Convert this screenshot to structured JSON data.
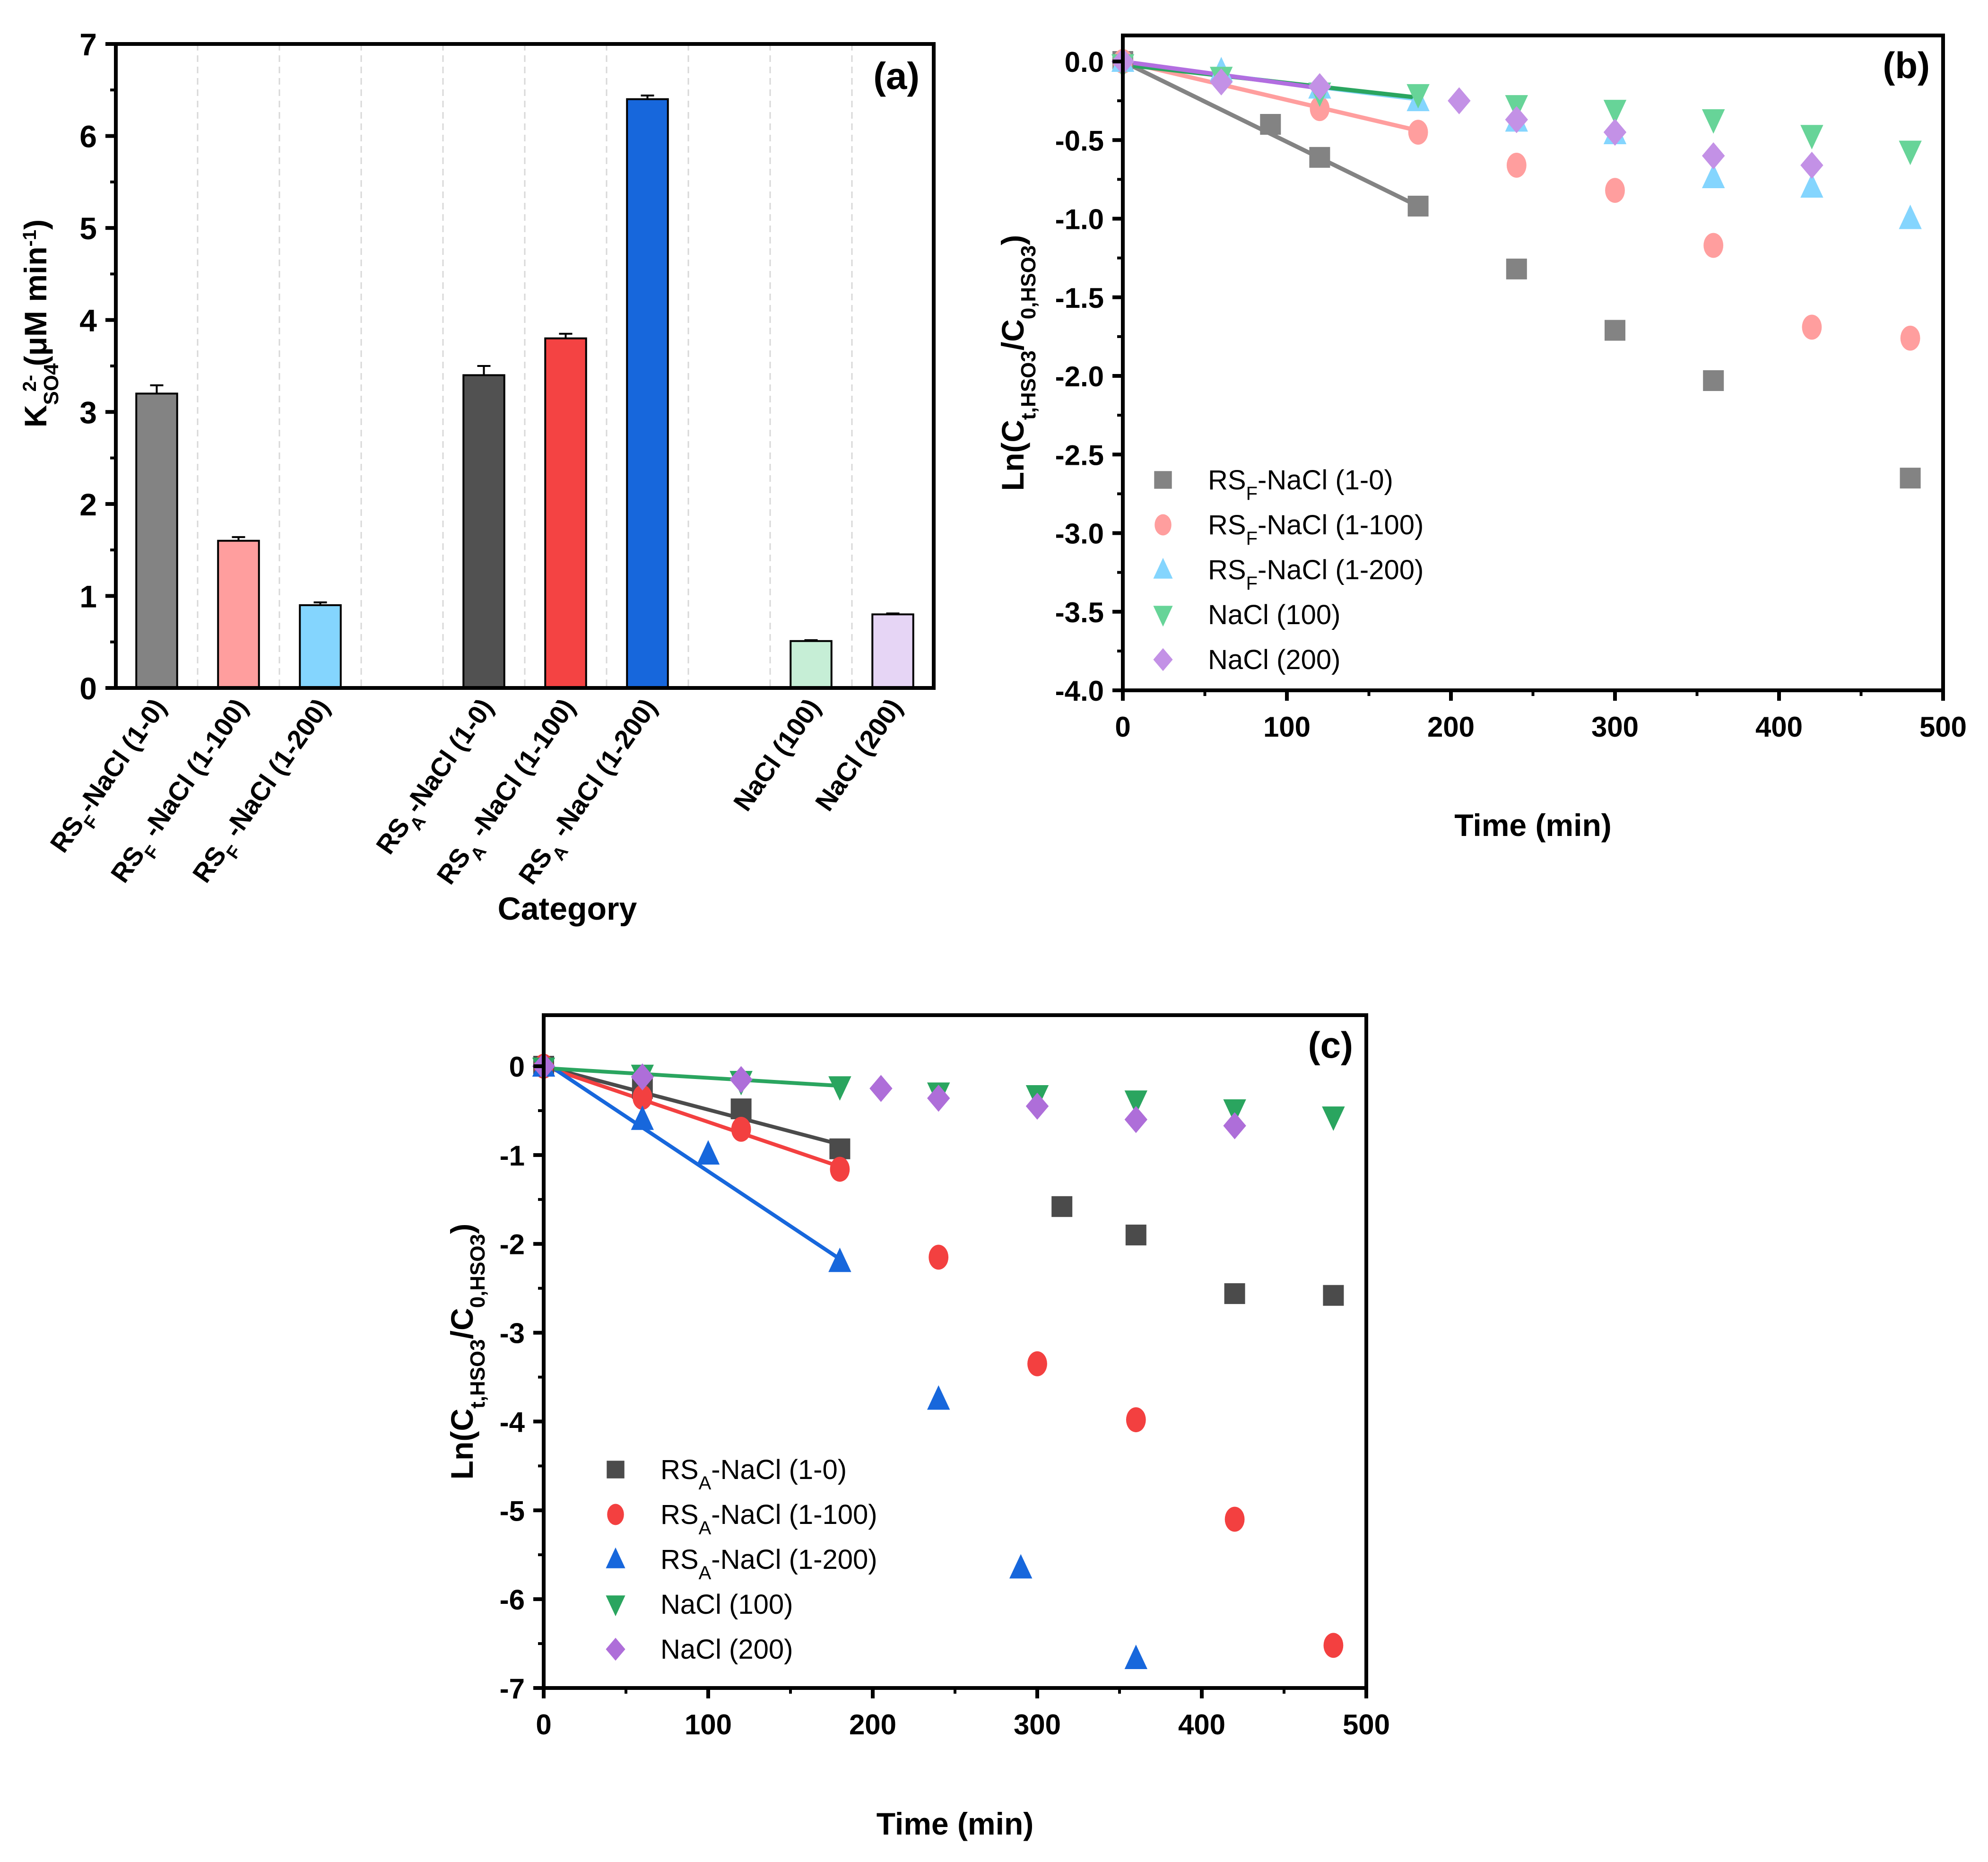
{
  "chart_data": [
    {
      "panel_label": "(a)",
      "type": "bar",
      "title": "",
      "xlabel": "Category",
      "ylabel": "K_SO4^2- (μM min^-1)",
      "ylabel_parts": {
        "main": "K",
        "sub": "SO4",
        "sup": "2-",
        "rest": " (μM min",
        "rest_sup": "-1",
        "close": ")"
      },
      "ylim": [
        0,
        7
      ],
      "yticks": [
        "0",
        "1",
        "2",
        "3",
        "4",
        "5",
        "6",
        "7"
      ],
      "grid": "vertical-dashed",
      "categories": [
        {
          "base": "RS",
          "sub": "F",
          "rest": "-NaCl (1-0)"
        },
        {
          "base": "RS",
          "sub": "F",
          "rest": " -NaCl (1-100)"
        },
        {
          "base": "RS",
          "sub": "F",
          "rest": " -NaCl (1-200)"
        },
        {
          "base": "",
          "sub": "",
          "rest": ""
        },
        {
          "base": "RS",
          "sub": "A",
          "rest": "-NaCl (1-0)"
        },
        {
          "base": "RS",
          "sub": "A",
          "rest": " -NaCl (1-100)"
        },
        {
          "base": "RS",
          "sub": "A",
          "rest": " -NaCl (1-200)"
        },
        {
          "base": "",
          "sub": "",
          "rest": ""
        },
        {
          "base": "",
          "sub": "",
          "rest": "NaCl (100)"
        },
        {
          "base": "",
          "sub": "",
          "rest": "NaCl (200)"
        }
      ],
      "values": [
        3.2,
        1.6,
        0.9,
        null,
        3.4,
        3.8,
        6.4,
        null,
        0.51,
        0.8
      ],
      "errors": [
        0.09,
        0.04,
        0.03,
        null,
        0.1,
        0.05,
        0.04,
        null,
        0.01,
        0.01
      ],
      "colors": [
        "#838383",
        "#ff9e9e",
        "#84d5fe",
        null,
        "#515151",
        "#f44343",
        "#1767dc",
        null,
        "#c6eed6",
        "#e6d5f5"
      ]
    },
    {
      "panel_label": "(b)",
      "type": "scatter",
      "xlabel": "Time (min)",
      "ylabel": "Ln(C_t,HSO3/C_0,HSO3)",
      "xlim": [
        0,
        500
      ],
      "ylim": [
        -4.0,
        0.2
      ],
      "xticks": [
        "0",
        "100",
        "200",
        "300",
        "400",
        "500"
      ],
      "yticks": [
        "0.0",
        "-0.5",
        "-1.0",
        "-1.5",
        "-2.0",
        "-2.5",
        "-3.0",
        "-3.5",
        "-4.0"
      ],
      "legend_position": "bottom-left",
      "series": [
        {
          "name": "RS_F-NaCl (1-0)",
          "label": {
            "base": "RS",
            "sub": "F",
            "rest": "-NaCl (1-0)"
          },
          "marker": "square",
          "color": "#838383",
          "x": [
            0,
            90,
            120,
            180,
            240,
            300,
            360,
            480
          ],
          "y": [
            0.0,
            -0.4,
            -0.61,
            -0.92,
            -1.32,
            -1.71,
            -2.03,
            -2.65
          ],
          "fit": {
            "x": [
              0,
              180
            ],
            "y": [
              0.0,
              -0.92
            ]
          }
        },
        {
          "name": "RS_F-NaCl (1-100)",
          "label": {
            "base": "RS",
            "sub": "F",
            "rest": "-NaCl (1-100)"
          },
          "marker": "circle",
          "color": "#ff9e9e",
          "x": [
            0,
            120,
            180,
            240,
            300,
            360,
            420,
            480
          ],
          "y": [
            0.0,
            -0.3,
            -0.45,
            -0.66,
            -0.82,
            -1.17,
            -1.69,
            -1.76
          ],
          "fit": {
            "x": [
              0,
              180
            ],
            "y": [
              0.0,
              -0.44
            ]
          }
        },
        {
          "name": "RS_F-NaCl (1-200)",
          "label": {
            "base": "RS",
            "sub": "F",
            "rest": "-NaCl (1-200)"
          },
          "marker": "triangle-up",
          "color": "#84d5fe",
          "x": [
            0,
            60,
            120,
            180,
            240,
            300,
            360,
            420,
            480
          ],
          "y": [
            0.0,
            -0.06,
            -0.17,
            -0.25,
            -0.38,
            -0.46,
            -0.74,
            -0.8,
            -1.0
          ],
          "fit": {
            "x": [
              0,
              180
            ],
            "y": [
              -0.01,
              -0.24
            ]
          }
        },
        {
          "name": "NaCl (100)",
          "label": {
            "base": "",
            "sub": "",
            "rest": "NaCl (100)"
          },
          "marker": "triangle-down",
          "color": "#67d498",
          "x": [
            0,
            60,
            120,
            180,
            240,
            300,
            360,
            420,
            480
          ],
          "y": [
            -0.02,
            -0.1,
            -0.2,
            -0.21,
            -0.28,
            -0.31,
            -0.37,
            -0.47,
            -0.57
          ],
          "fit": {
            "x": [
              0,
              180
            ],
            "y": [
              -0.02,
              -0.23
            ],
            "color": "#2aa55f"
          }
        },
        {
          "name": "NaCl (200)",
          "label": {
            "base": "",
            "sub": "",
            "rest": "NaCl (200)"
          },
          "marker": "diamond",
          "color": "#c391e6",
          "x": [
            0,
            60,
            120,
            205,
            240,
            300,
            360,
            420
          ],
          "y": [
            0.0,
            -0.13,
            -0.16,
            -0.25,
            -0.37,
            -0.45,
            -0.6,
            -0.66
          ],
          "fit": {
            "x": [
              0,
              120
            ],
            "y": [
              0.0,
              -0.17
            ],
            "color": "#b26ee0"
          }
        }
      ]
    },
    {
      "panel_label": "(c)",
      "type": "scatter",
      "xlabel": "Time (min)",
      "ylabel": "Ln(C_t,HSO3/C_0,HSO3)",
      "xlim": [
        0,
        500
      ],
      "ylim": [
        -7,
        0.4
      ],
      "xticks": [
        "0",
        "100",
        "200",
        "300",
        "400",
        "500"
      ],
      "yticks": [
        "0",
        "-1",
        "-2",
        "-3",
        "-4",
        "-5",
        "-6",
        "-7"
      ],
      "legend_position": "bottom-left",
      "series": [
        {
          "name": "RS_A-NaCl (1-0)",
          "label": {
            "base": "RS",
            "sub": "A",
            "rest": "-NaCl (1-0)"
          },
          "marker": "square",
          "color": "#4b4b4b",
          "x": [
            0,
            60,
            120,
            180,
            315,
            360,
            420,
            480
          ],
          "y": [
            0.0,
            -0.25,
            -0.48,
            -0.93,
            -1.58,
            -1.9,
            -2.56,
            -2.58
          ],
          "fit": {
            "x": [
              0,
              180
            ],
            "y": [
              0.0,
              -0.88
            ]
          }
        },
        {
          "name": "RS_A-NaCl (1-100)",
          "label": {
            "base": "RS",
            "sub": "A",
            "rest": "-NaCl (1-100)"
          },
          "marker": "circle",
          "color": "#f34040",
          "x": [
            0,
            60,
            120,
            180,
            240,
            300,
            360,
            420,
            480
          ],
          "y": [
            0.0,
            -0.35,
            -0.71,
            -1.16,
            -2.15,
            -3.35,
            -3.98,
            -5.1,
            -6.52
          ],
          "fit": {
            "x": [
              0,
              180
            ],
            "y": [
              0.0,
              -1.13
            ]
          }
        },
        {
          "name": "RS_A-NaCl (1-200)",
          "label": {
            "base": "RS",
            "sub": "A",
            "rest": "-NaCl (1-200)"
          },
          "marker": "triangle-up",
          "color": "#1767dc",
          "x": [
            0,
            60,
            100,
            180,
            240,
            290,
            360
          ],
          "y": [
            0.0,
            -0.6,
            -0.99,
            -2.2,
            -3.75,
            -5.65,
            -6.67
          ],
          "fit": {
            "x": [
              0,
              180
            ],
            "y": [
              0.05,
              -2.17
            ]
          }
        },
        {
          "name": "NaCl (100)",
          "label": {
            "base": "",
            "sub": "",
            "rest": "NaCl (100)"
          },
          "marker": "triangle-down",
          "color": "#2aa55f",
          "x": [
            0,
            60,
            120,
            180,
            240,
            300,
            360,
            420,
            480
          ],
          "y": [
            -0.02,
            -0.1,
            -0.17,
            -0.23,
            -0.3,
            -0.33,
            -0.39,
            -0.49,
            -0.57
          ],
          "fit": {
            "x": [
              0,
              180
            ],
            "y": [
              -0.02,
              -0.22
            ]
          }
        },
        {
          "name": "NaCl (200)",
          "label": {
            "base": "",
            "sub": "",
            "rest": "NaCl (200)"
          },
          "marker": "diamond",
          "color": "#ae6ed9",
          "x": [
            0,
            60,
            120,
            205,
            240,
            300,
            360,
            420
          ],
          "y": [
            0.0,
            -0.12,
            -0.15,
            -0.25,
            -0.36,
            -0.45,
            -0.6,
            -0.67
          ],
          "fit": null
        }
      ]
    }
  ]
}
